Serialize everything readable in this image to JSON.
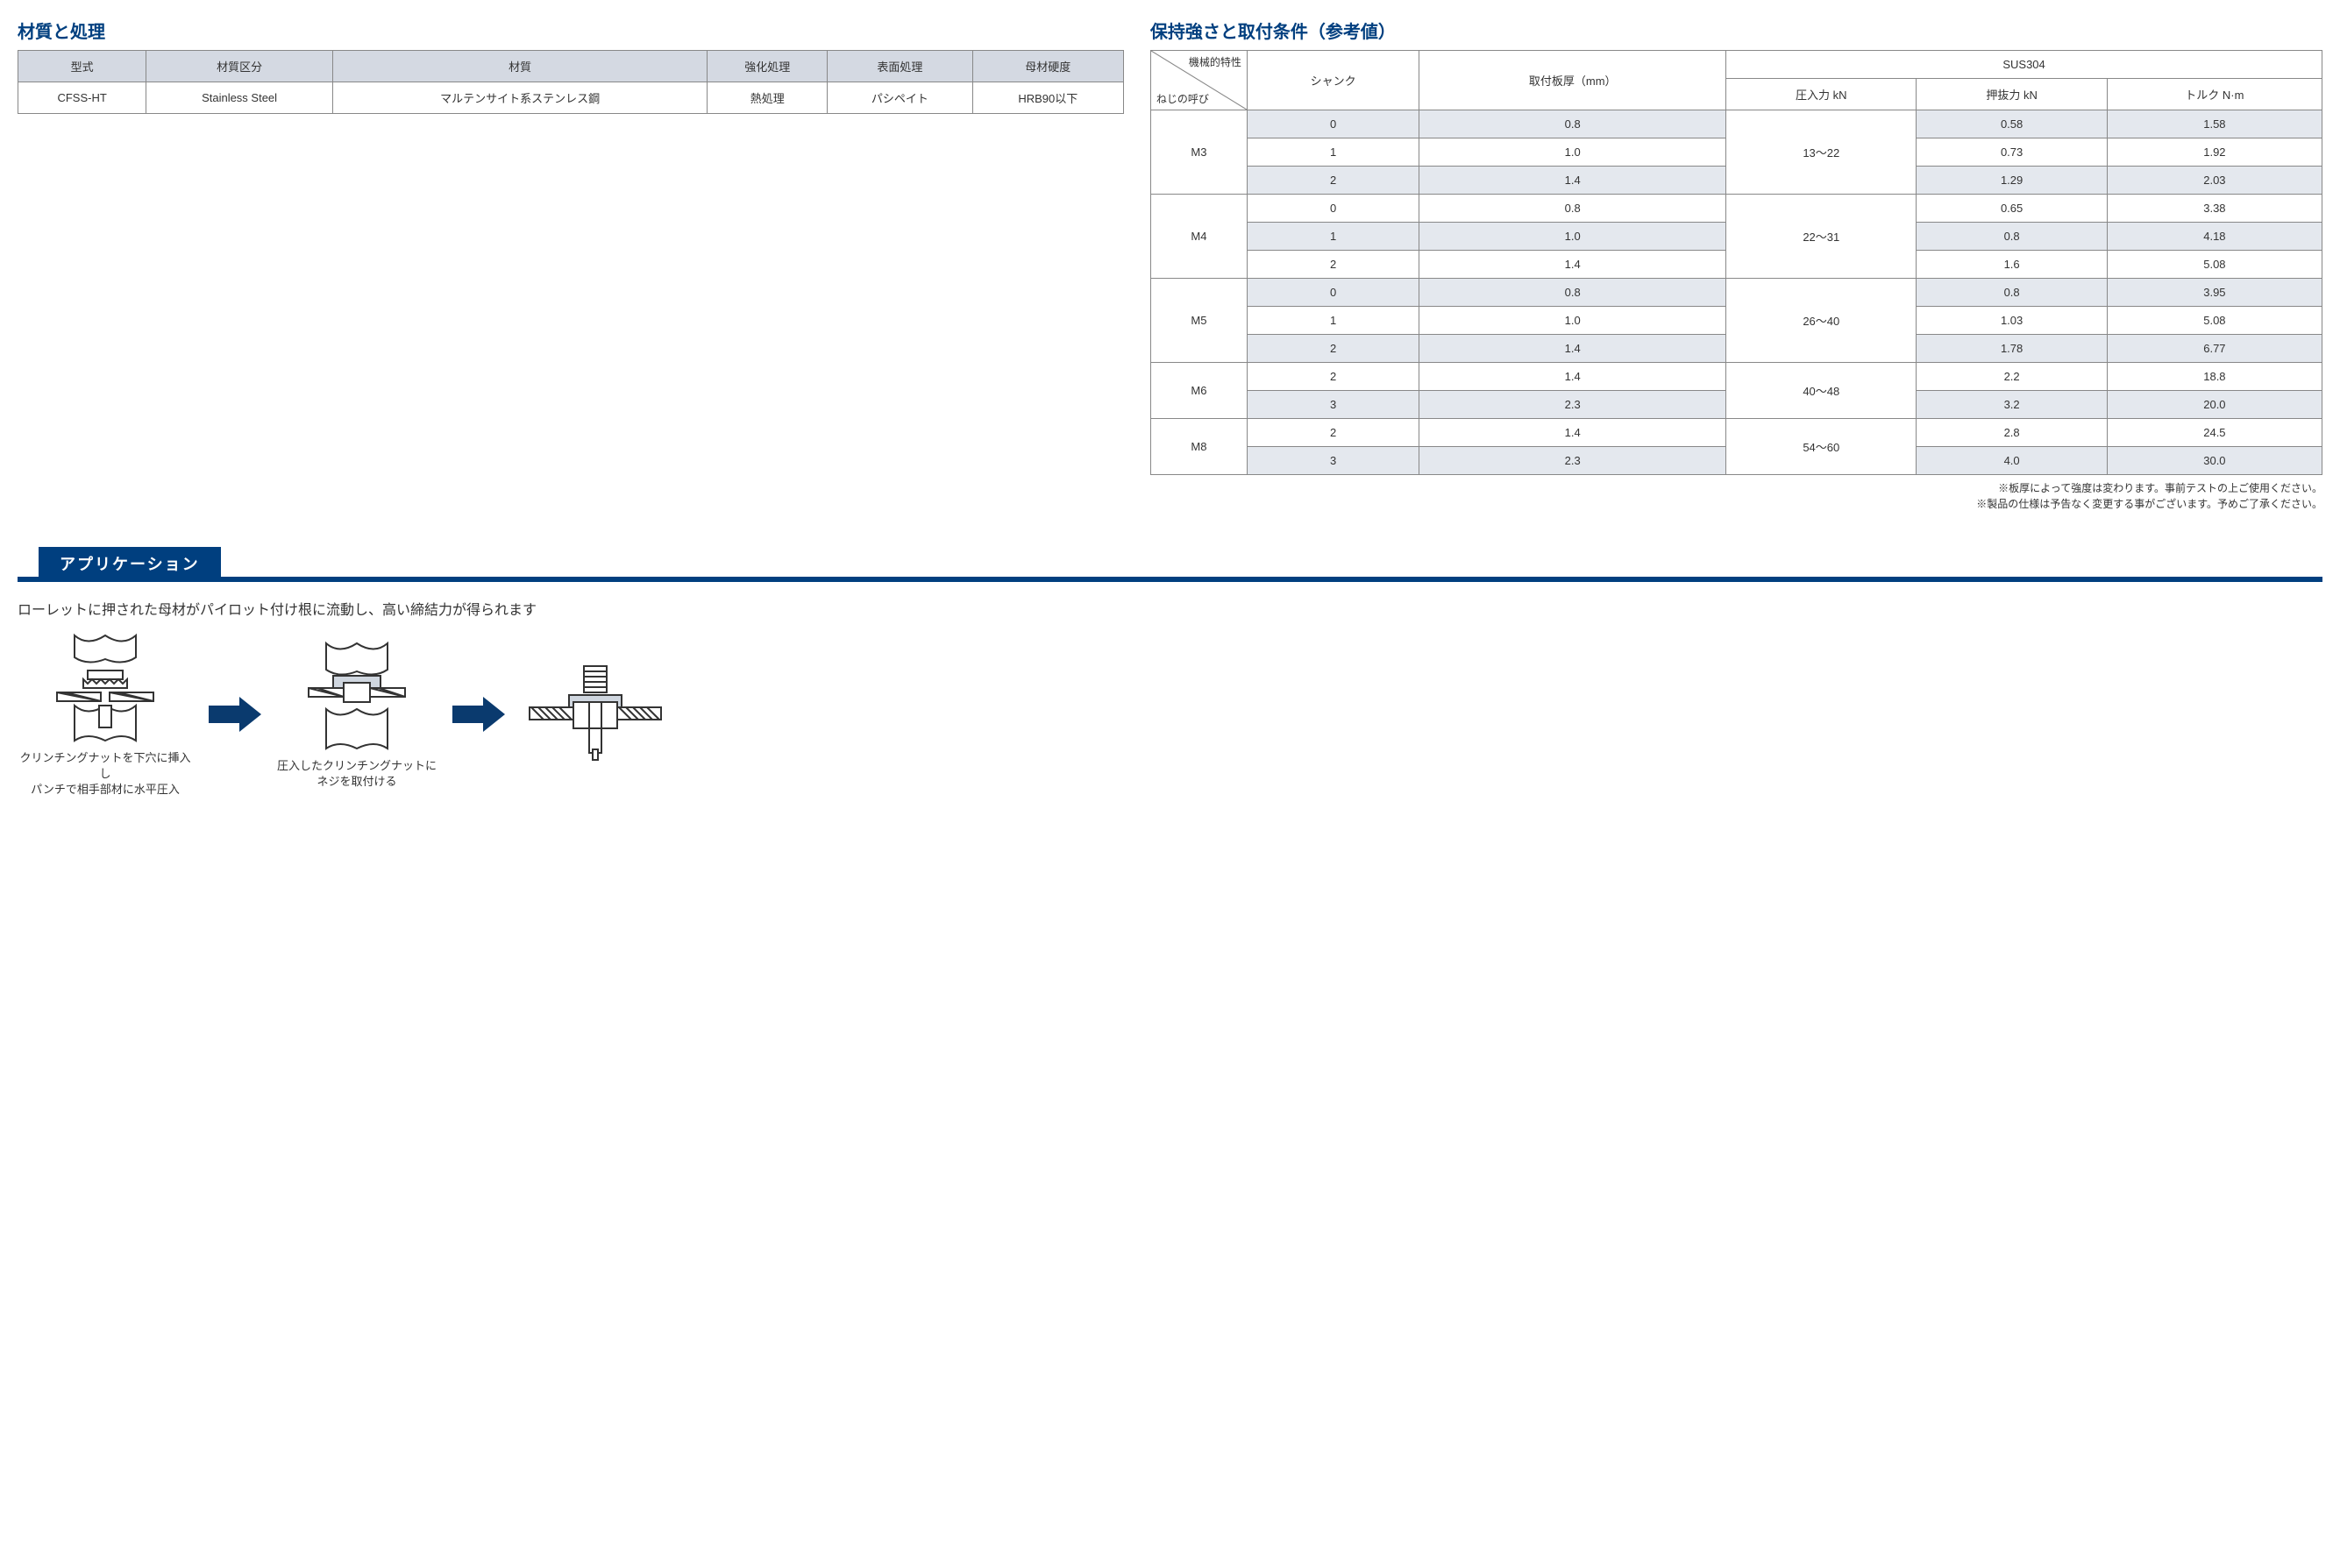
{
  "materials": {
    "heading": "材質と処理",
    "columns": [
      "型式",
      "材質区分",
      "材質",
      "強化処理",
      "表面処理",
      "母材硬度"
    ],
    "row": [
      "CFSS-HT",
      "Stainless Steel",
      "マルテンサイト系ステンレス鋼",
      "熱処理",
      "パシペイト",
      "HRB90以下"
    ]
  },
  "strength": {
    "heading": "保持強さと取付条件（参考値）",
    "diag_top": "機械的特性",
    "diag_bottom": "ねじの呼び",
    "col_shank": "シャンク",
    "col_plate": "取付板厚（mm）",
    "col_sus": "SUS304",
    "col_press": "圧入力 kN",
    "col_push": "押抜力 kN",
    "col_torque": "トルク N·m",
    "groups": [
      {
        "size": "M3",
        "press": "13～22",
        "rows": [
          {
            "shank": "0",
            "plate": "0.8",
            "push": "0.58",
            "torque": "1.58"
          },
          {
            "shank": "1",
            "plate": "1.0",
            "push": "0.73",
            "torque": "1.92"
          },
          {
            "shank": "2",
            "plate": "1.4",
            "push": "1.29",
            "torque": "2.03"
          }
        ]
      },
      {
        "size": "M4",
        "press": "22～31",
        "rows": [
          {
            "shank": "0",
            "plate": "0.8",
            "push": "0.65",
            "torque": "3.38"
          },
          {
            "shank": "1",
            "plate": "1.0",
            "push": "0.8",
            "torque": "4.18"
          },
          {
            "shank": "2",
            "plate": "1.4",
            "push": "1.6",
            "torque": "5.08"
          }
        ]
      },
      {
        "size": "M5",
        "press": "26～40",
        "rows": [
          {
            "shank": "0",
            "plate": "0.8",
            "push": "0.8",
            "torque": "3.95"
          },
          {
            "shank": "1",
            "plate": "1.0",
            "push": "1.03",
            "torque": "5.08"
          },
          {
            "shank": "2",
            "plate": "1.4",
            "push": "1.78",
            "torque": "6.77"
          }
        ]
      },
      {
        "size": "M6",
        "press": "40～48",
        "rows": [
          {
            "shank": "2",
            "plate": "1.4",
            "push": "2.2",
            "torque": "18.8"
          },
          {
            "shank": "3",
            "plate": "2.3",
            "push": "3.2",
            "torque": "20.0"
          }
        ]
      },
      {
        "size": "M8",
        "press": "54～60",
        "rows": [
          {
            "shank": "2",
            "plate": "1.4",
            "push": "2.8",
            "torque": "24.5"
          },
          {
            "shank": "3",
            "plate": "2.3",
            "push": "4.0",
            "torque": "30.0"
          }
        ]
      }
    ],
    "notes": [
      "※板厚によって強度は変わります。事前テストの上ご使用ください。",
      "※製品の仕様は予告なく変更する事がございます。予めご了承ください。"
    ]
  },
  "application": {
    "title": "アプリケーション",
    "desc": "ローレットに押された母材がパイロット付け根に流動し、高い締結力が得られます",
    "step1_caption_l1": "クリンチングナットを下穴に挿入し",
    "step1_caption_l2": "パンチで相手部材に水平圧入",
    "step2_caption_l1": "圧入したクリンチングナットに",
    "step2_caption_l2": "ネジを取付ける"
  },
  "colors": {
    "brand_blue": "#003f7f",
    "header_grey": "#d4d9e2",
    "shade_grey": "#e4e8ee",
    "border_grey": "#888888",
    "arrow_blue": "#0a3a6e"
  }
}
